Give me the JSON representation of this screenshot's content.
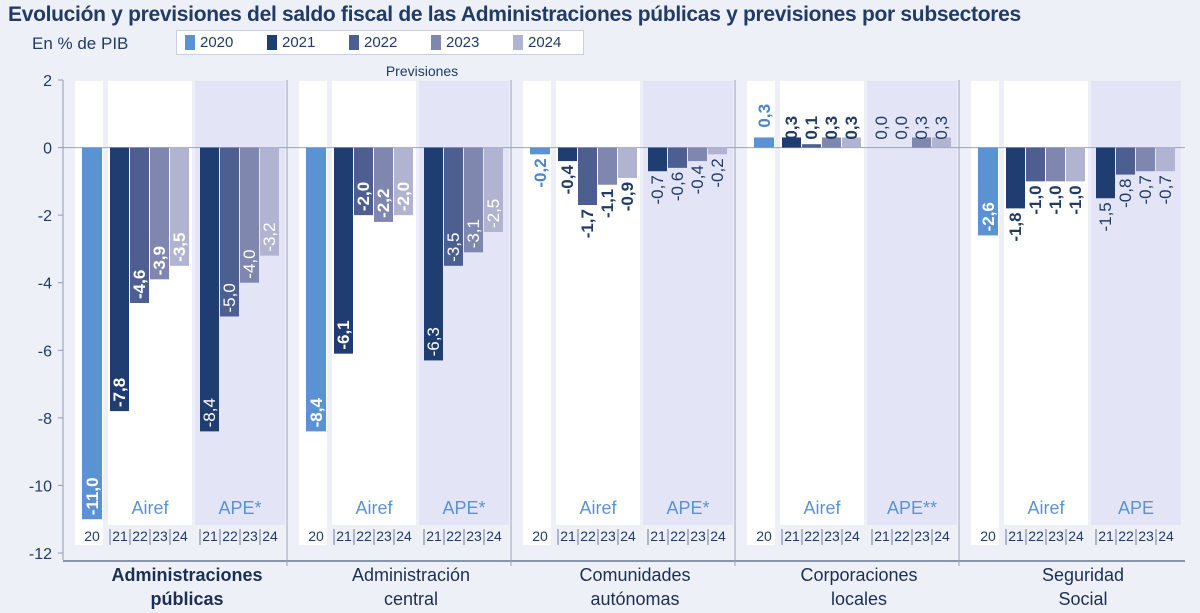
{
  "header": {
    "title": "Evolución y previsiones del saldo fiscal de las Administraciones públicas y previsiones por subsectores",
    "subtitle": "En % de PIB"
  },
  "legend": [
    {
      "label": "2020",
      "color": "#5b93d2"
    },
    {
      "label": "2021",
      "color": "#1f3d70"
    },
    {
      "label": "2022",
      "color": "#4d5f91"
    },
    {
      "label": "2023",
      "color": "#8087ae"
    },
    {
      "label": "2024",
      "color": "#b0b4d0"
    }
  ],
  "colors": {
    "background": "#eef0f7",
    "panel": "#ffffff",
    "ape_panel": "#e6e8f7",
    "text": "#1f3b66"
  },
  "chart_data": {
    "type": "bar",
    "title": "Evolución y previsiones del saldo fiscal de las Administraciones públicas y previsiones por subsectores",
    "ylabel": "En % de PIB",
    "ylim": [
      -12,
      2
    ],
    "yticks": [
      "2",
      "0",
      "-2",
      "-4",
      "-6",
      "-8",
      "-10",
      "-12"
    ],
    "forecast_label": "Previsiones",
    "groups": [
      {
        "name_lines": [
          "Administraciones",
          "públicas"
        ],
        "bold": true,
        "actual": {
          "year_label": "20",
          "value": -11.0,
          "label": "-11,0"
        },
        "forecasts": [
          {
            "source": "Airef",
            "year_labels": [
              "21",
              "22",
              "23",
              "24"
            ],
            "values": [
              -7.8,
              -4.6,
              -3.9,
              -3.5
            ],
            "labels": [
              "-7,8",
              "-4,6",
              "-3,9",
              "-3,5"
            ]
          },
          {
            "source": "APE*",
            "year_labels": [
              "21",
              "22",
              "23",
              "24"
            ],
            "values": [
              -8.4,
              -5.0,
              -4.0,
              -3.2
            ],
            "labels": [
              "-8,4",
              "-5,0",
              "-4,0",
              "-3,2"
            ]
          }
        ]
      },
      {
        "name_lines": [
          "Administración",
          "central"
        ],
        "bold": false,
        "actual": {
          "year_label": "20",
          "value": -8.4,
          "label": "-8,4"
        },
        "forecasts": [
          {
            "source": "Airef",
            "year_labels": [
              "21",
              "22",
              "23",
              "24"
            ],
            "values": [
              -6.1,
              -2.0,
              -2.2,
              -2.0
            ],
            "labels": [
              "-6,1",
              "-2,0",
              "-2,2",
              "-2,0"
            ]
          },
          {
            "source": "APE*",
            "year_labels": [
              "21",
              "22",
              "23",
              "24"
            ],
            "values": [
              -6.3,
              -3.5,
              -3.1,
              -2.5
            ],
            "labels": [
              "-6,3",
              "-3,5",
              "-3,1",
              "-2,5"
            ]
          }
        ]
      },
      {
        "name_lines": [
          "Comunidades",
          "autónomas"
        ],
        "bold": false,
        "actual": {
          "year_label": "20",
          "value": -0.2,
          "label": "-0,2"
        },
        "forecasts": [
          {
            "source": "Airef",
            "year_labels": [
              "21",
              "22",
              "23",
              "24"
            ],
            "values": [
              -0.4,
              -1.7,
              -1.1,
              -0.9
            ],
            "labels": [
              "-0,4",
              "-1,7",
              "-1,1",
              "-0,9"
            ]
          },
          {
            "source": "APE*",
            "year_labels": [
              "21",
              "22",
              "23",
              "24"
            ],
            "values": [
              -0.7,
              -0.6,
              -0.4,
              -0.2
            ],
            "labels": [
              "-0,7",
              "-0,6",
              "-0,4",
              "-0,2"
            ]
          }
        ]
      },
      {
        "name_lines": [
          "Corporaciones",
          "locales"
        ],
        "bold": false,
        "actual": {
          "year_label": "20",
          "value": 0.3,
          "label": "0,3"
        },
        "forecasts": [
          {
            "source": "Airef",
            "year_labels": [
              "21",
              "22",
              "23",
              "24"
            ],
            "values": [
              0.3,
              0.1,
              0.3,
              0.3
            ],
            "labels": [
              "0,3",
              "0,1",
              "0,3",
              "0,3"
            ]
          },
          {
            "source": "APE**",
            "year_labels": [
              "21",
              "22",
              "23",
              "24"
            ],
            "values": [
              0.0,
              0.0,
              0.3,
              0.3
            ],
            "labels": [
              "0,0",
              "0,0",
              "0,3",
              "0,3"
            ]
          }
        ]
      },
      {
        "name_lines": [
          "Seguridad",
          "Social"
        ],
        "bold": false,
        "actual": {
          "year_label": "20",
          "value": -2.6,
          "label": "-2,6"
        },
        "forecasts": [
          {
            "source": "Airef",
            "year_labels": [
              "21",
              "22",
              "23",
              "24"
            ],
            "values": [
              -1.8,
              -1.0,
              -1.0,
              -1.0
            ],
            "labels": [
              "-1,8",
              "-1,0",
              "-1,0",
              "-1,0"
            ]
          },
          {
            "source": "APE",
            "year_labels": [
              "21",
              "22",
              "23",
              "24"
            ],
            "values": [
              -1.5,
              -0.8,
              -0.7,
              -0.7
            ],
            "labels": [
              "-1,5",
              "-0,8",
              "-0,7",
              "-0,7"
            ]
          }
        ]
      }
    ]
  }
}
